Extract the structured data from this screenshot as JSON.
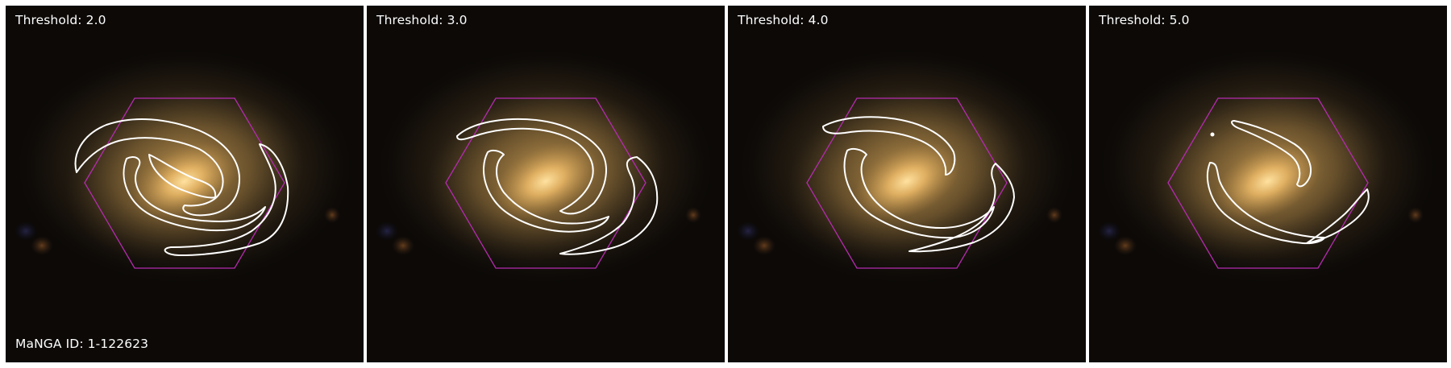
{
  "panels": [
    {
      "threshold_label": "Threshold: 2.0",
      "id_label": "MaNGA ID: 1-122623"
    },
    {
      "threshold_label": "Threshold: 3.0"
    },
    {
      "threshold_label": "Threshold: 4.0"
    },
    {
      "threshold_label": "Threshold: 5.0"
    }
  ],
  "colors": {
    "background": "#0c0907",
    "galaxy_core": "#ffd27a",
    "hexagon": "#b52bb0",
    "contour": "#ffffff",
    "label_text": "#ffffff"
  }
}
